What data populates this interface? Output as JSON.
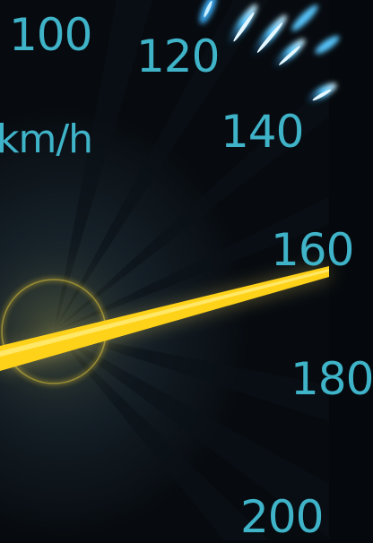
{
  "gauge": {
    "unit": "km/h",
    "scale_labels": [
      "100",
      "120",
      "140",
      "160",
      "180",
      "200"
    ]
  },
  "colors": {
    "label_cyan": "#3fb3c8",
    "tick_glow_blue": "#58c8ff",
    "needle_yellow": "#ffd21a",
    "hub_ring": "#b9a630",
    "background_dark": "#05090d"
  }
}
